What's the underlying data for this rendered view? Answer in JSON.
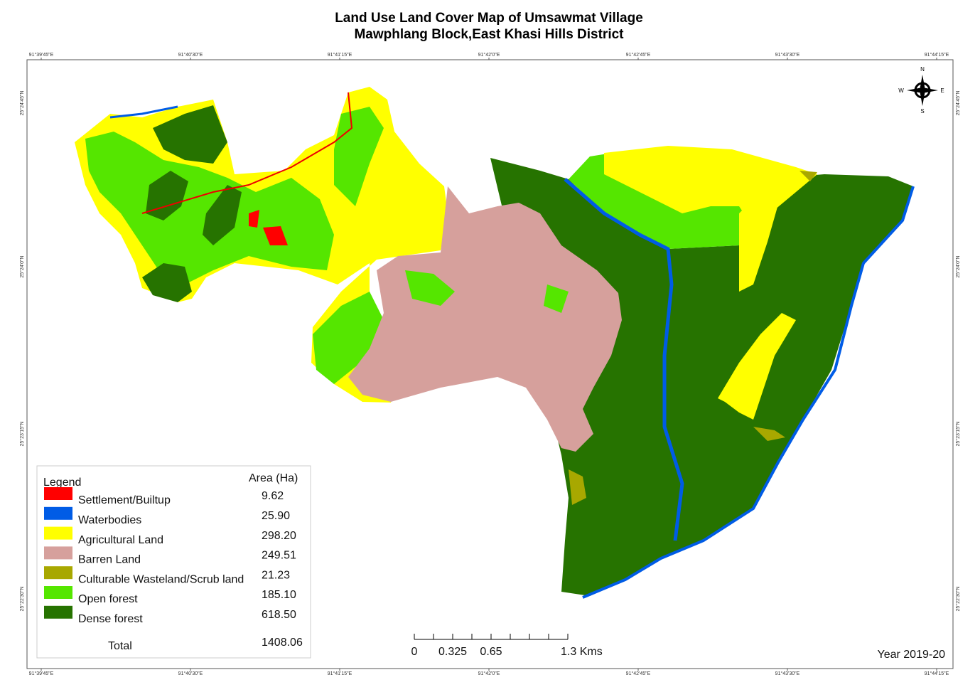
{
  "title": [
    "Land Use Land Cover Map of Umsawmat Village",
    "Mawphlang Block,East Khasi Hills District"
  ],
  "lon_ticks": [
    "91°39'45\"E",
    "91°40'30\"E",
    "91°41'15\"E",
    "91°42'0\"E",
    "91°42'45\"E",
    "91°43'30\"E",
    "91°44'15\"E"
  ],
  "lat_ticks": [
    "25°24'45\"N",
    "25°24'0\"N",
    "25°23'15\"N",
    "25°22'30\"N"
  ],
  "compass": {
    "n": "N",
    "s": "S",
    "e": "E",
    "w": "W"
  },
  "legend": {
    "title": "Legend",
    "area_header": "Area (Ha)",
    "items": [
      {
        "label": "Settlement/Builtup",
        "color": "#ff0000",
        "area": "9.62"
      },
      {
        "label": "Waterbodies",
        "color": "#005ce6",
        "area": "25.90"
      },
      {
        "label": "Agricultural Land",
        "color": "#ffff00",
        "area": "298.20"
      },
      {
        "label": "Barren Land",
        "color": "#d6a09c",
        "area": "249.51"
      },
      {
        "label": "Culturable Wasteland/Scrub land",
        "color": "#a8a800",
        "area": "21.23"
      },
      {
        "label": "Open forest",
        "color": "#55e600",
        "area": "185.10"
      },
      {
        "label": "Dense forest",
        "color": "#267300",
        "area": "618.50"
      }
    ],
    "total_label": "Total",
    "total": "1408.06"
  },
  "scale_bar": [
    "0",
    "0.325",
    "0.65",
    "1.3 Kms"
  ],
  "year": "Year 2019-20"
}
